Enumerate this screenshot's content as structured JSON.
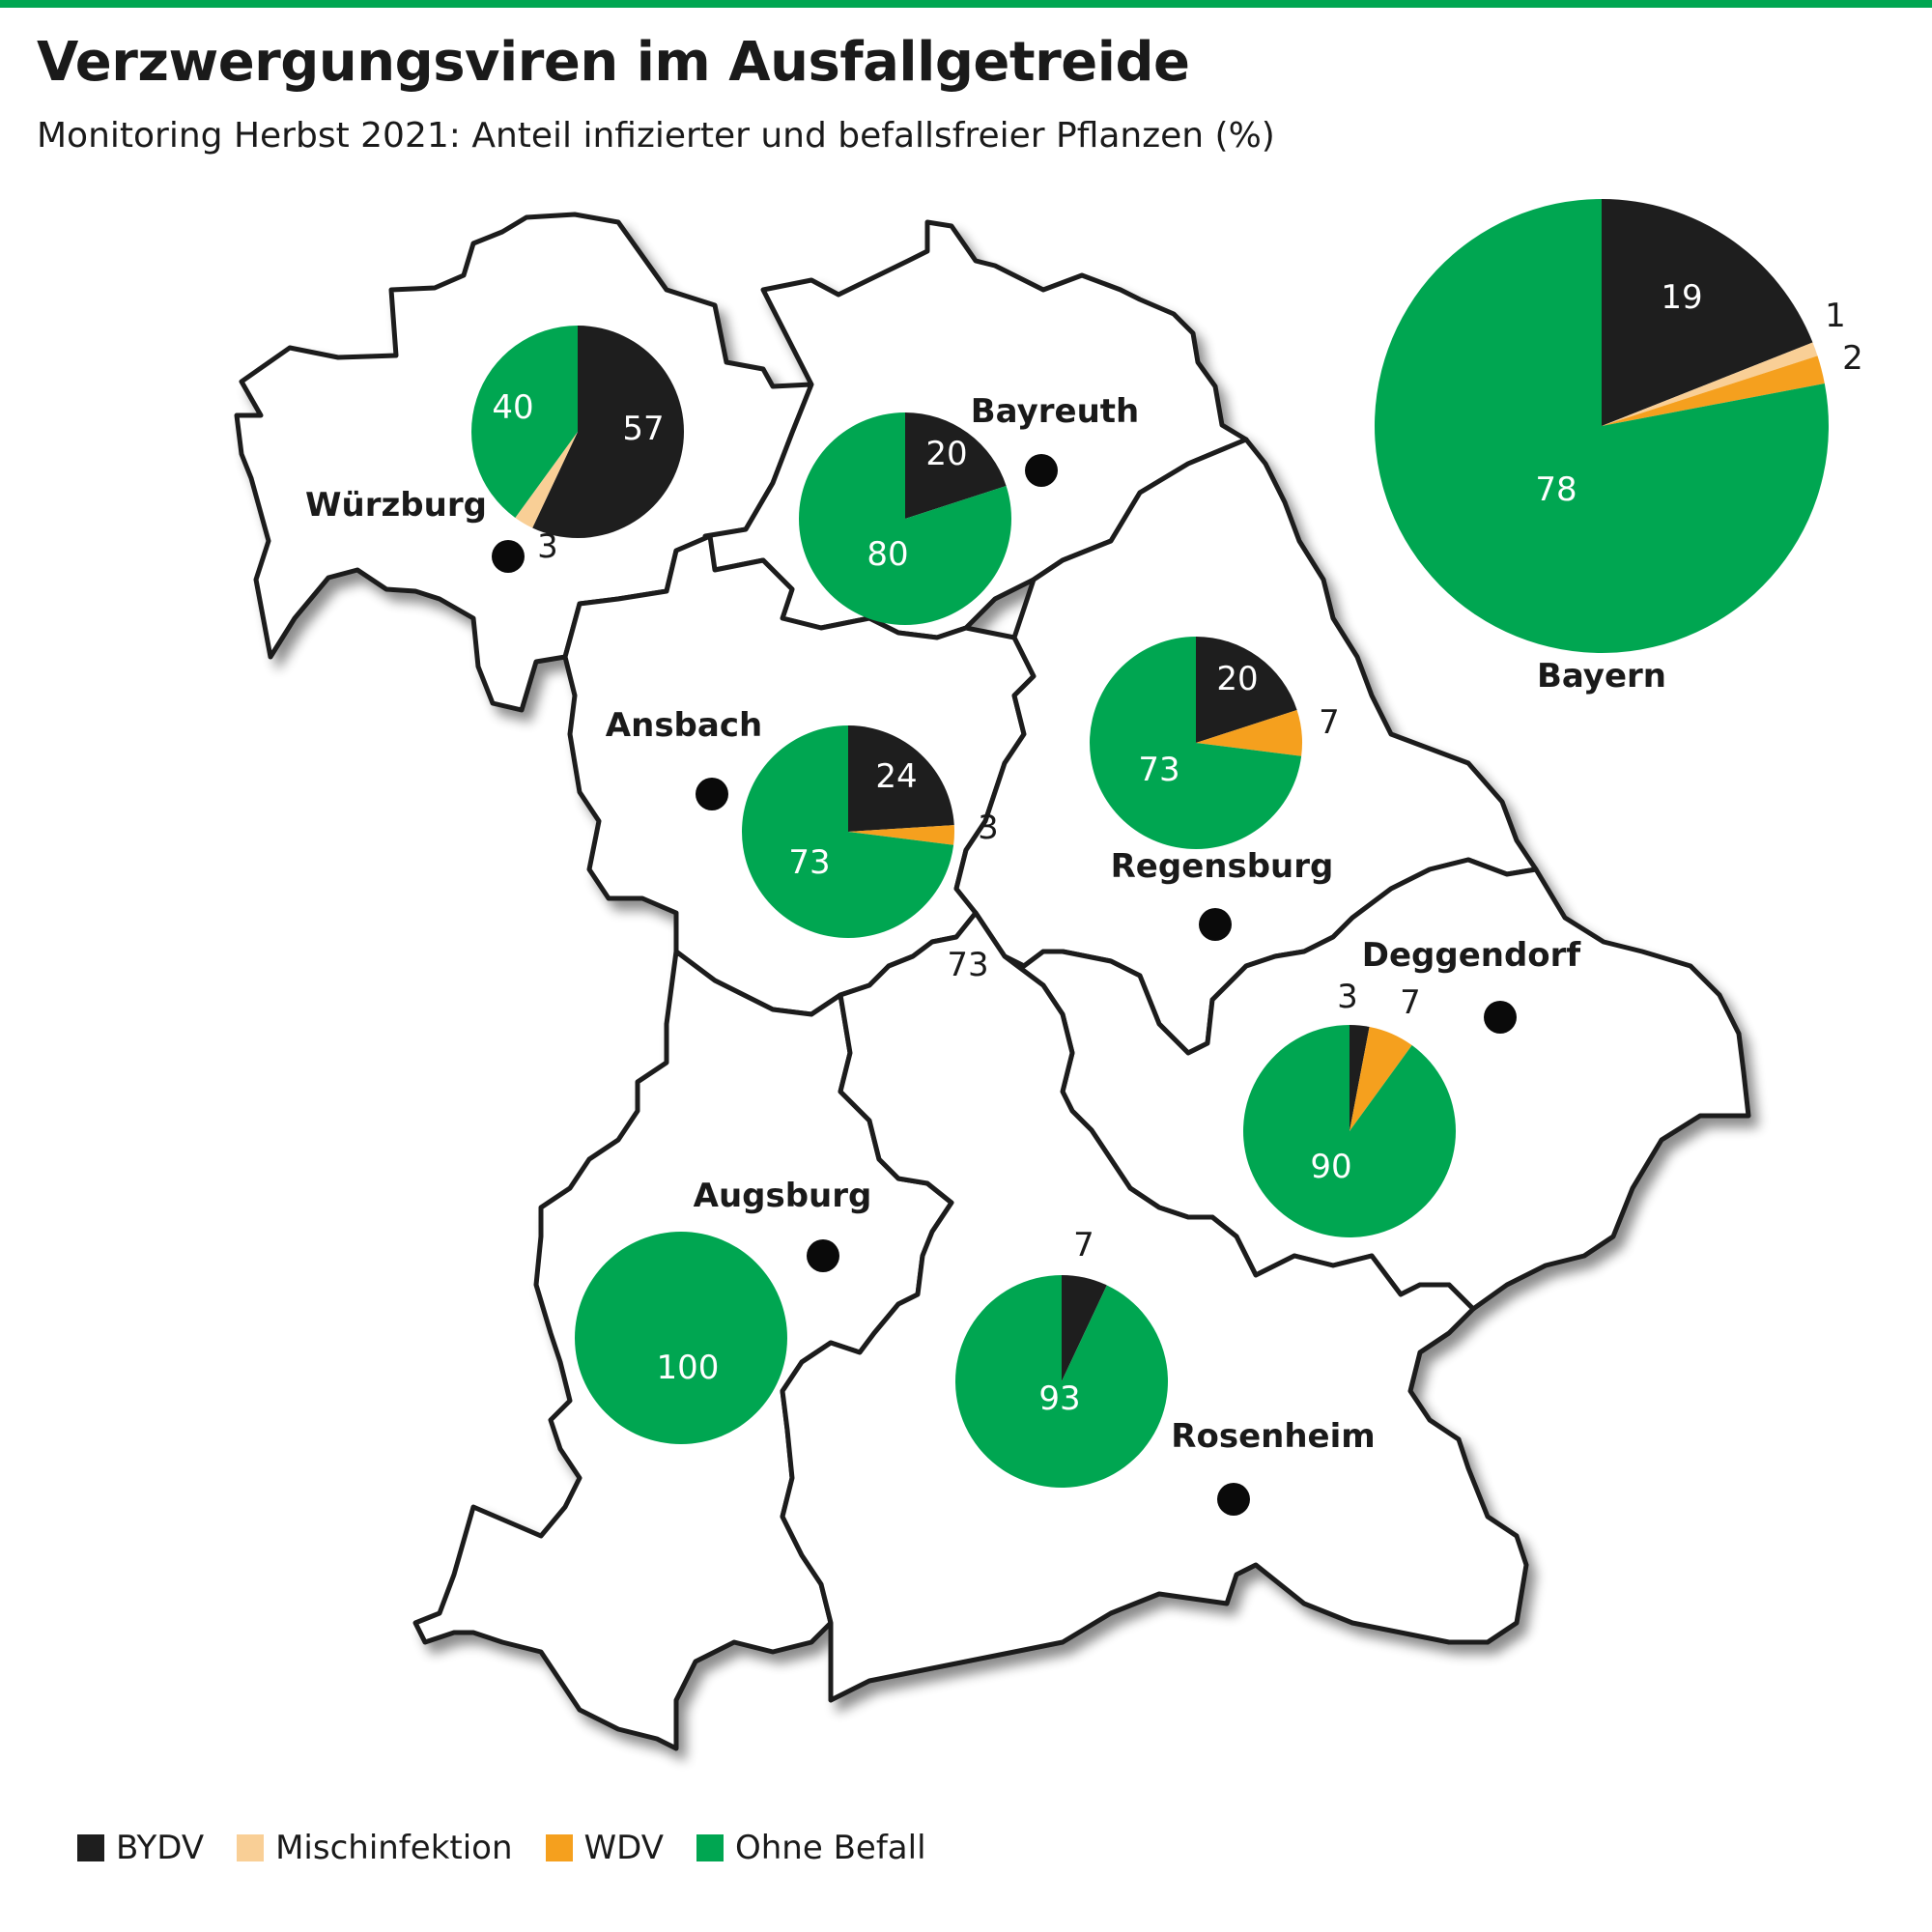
{
  "title": "Verzwergungsviren im Ausfallgetreide",
  "subtitle": "Monitoring Herbst 2021: Anteil infizierter und befallsfreier Pflanzen (%)",
  "colors": {
    "bydv": "#1e1e1e",
    "mischinfektion": "#f9cf96",
    "wdv": "#f5a01e",
    "ohne_befall": "#00a651",
    "region_fill": "#ffffff",
    "border": "#1a1a1a"
  },
  "legend": [
    {
      "key": "bydv",
      "label": "BYDV"
    },
    {
      "key": "mischinfektion",
      "label": "Mischinfektion"
    },
    {
      "key": "wdv",
      "label": "WDV"
    },
    {
      "key": "ohne_befall",
      "label": "Ohne Befall"
    }
  ],
  "cities": [
    {
      "name": "Würzburg"
    },
    {
      "name": "Bayreuth"
    },
    {
      "name": "Ansbach"
    },
    {
      "name": "Regensburg"
    },
    {
      "name": "Deggendorf"
    },
    {
      "name": "Augsburg"
    },
    {
      "name": "Rosenheim"
    }
  ],
  "bayern_label": "Bayern",
  "stray_label": "73",
  "chart_data": {
    "type": "pie",
    "series_order": [
      "bydv",
      "mischinfektion",
      "wdv",
      "ohne_befall"
    ],
    "pies": [
      {
        "region": "Würzburg",
        "values": {
          "bydv": 57,
          "mischinfektion": 3,
          "wdv": 0,
          "ohne_befall": 40
        }
      },
      {
        "region": "Bayreuth",
        "values": {
          "bydv": 20,
          "mischinfektion": 0,
          "wdv": 0,
          "ohne_befall": 80
        }
      },
      {
        "region": "Ansbach",
        "values": {
          "bydv": 24,
          "mischinfektion": 0,
          "wdv": 3,
          "ohne_befall": 73
        }
      },
      {
        "region": "Regensburg",
        "values": {
          "bydv": 20,
          "mischinfektion": 0,
          "wdv": 7,
          "ohne_befall": 73
        }
      },
      {
        "region": "Deggendorf",
        "values": {
          "bydv": 3,
          "mischinfektion": 0,
          "wdv": 7,
          "ohne_befall": 90
        }
      },
      {
        "region": "Augsburg",
        "values": {
          "bydv": 0,
          "mischinfektion": 0,
          "wdv": 0,
          "ohne_befall": 100
        }
      },
      {
        "region": "Rosenheim",
        "values": {
          "bydv": 7,
          "mischinfektion": 0,
          "wdv": 0,
          "ohne_befall": 93
        }
      },
      {
        "region": "Bayern",
        "values": {
          "bydv": 19,
          "mischinfektion": 1,
          "wdv": 2,
          "ohne_befall": 78
        }
      }
    ]
  }
}
